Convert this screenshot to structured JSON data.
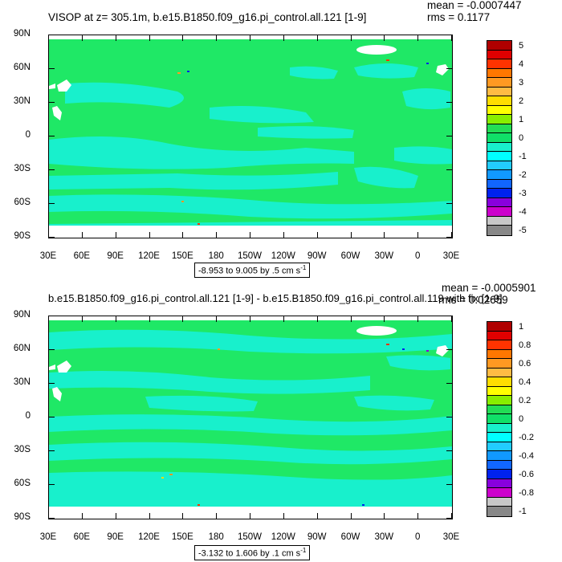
{
  "colors": {
    "ocean_green": "#1fe866",
    "ocean_cyan": "#18f0cc",
    "land": "#ffffff",
    "frame": "#000000"
  },
  "longitude_labels": [
    "30E",
    "60E",
    "90E",
    "120E",
    "150E",
    "180",
    "150W",
    "120W",
    "90W",
    "60W",
    "30W",
    "0",
    "30E"
  ],
  "latitude_labels": [
    "90N",
    "60N",
    "30N",
    "0",
    "30S",
    "60S",
    "90S"
  ],
  "panels": [
    {
      "title": "VISOP at z= 305.1m, b.e15.B1850.f09_g16.pi_control.all.121 [1-9]",
      "mean": "mean = -0.0007447",
      "rms": "rms = 0.1177",
      "range_text": "-8.953 to 9.005 by .5 cm s",
      "range_exponent": "-1",
      "colorbar": {
        "labels": [
          "5",
          "4",
          "3",
          "2",
          "1",
          "0",
          "-1",
          "-2",
          "-3",
          "-4",
          "-5"
        ],
        "colors": [
          "#b00000",
          "#e00000",
          "#ff3300",
          "#ff7700",
          "#ff9922",
          "#ffbb44",
          "#ffdd00",
          "#ffff00",
          "#88ee00",
          "#22dd55",
          "#10e068",
          "#18f0cc",
          "#00ffff",
          "#22ccff",
          "#1199ff",
          "#1166ff",
          "#0022ee",
          "#8800dd",
          "#cc00cc",
          "#c8c8c8",
          "#888888"
        ]
      }
    },
    {
      "title": "b.e15.B1850.f09_g16.pi_control.all.121 [1-9] - b.e15.B1850.f09_g16.pi_control.all.119 with fix [1-9]",
      "mean": "mean = -0.0005901",
      "rms": "rms = 0.02659",
      "range_text": "-3.132 to 1.606 by .1 cm s",
      "range_exponent": "-1",
      "colorbar": {
        "labels": [
          "1",
          "0.8",
          "0.6",
          "0.4",
          "0.2",
          "0",
          "-0.2",
          "-0.4",
          "-0.6",
          "-0.8",
          "-1"
        ],
        "colors": [
          "#b00000",
          "#e00000",
          "#ff3300",
          "#ff7700",
          "#ff9922",
          "#ffbb44",
          "#ffdd00",
          "#ffff00",
          "#88ee00",
          "#22dd55",
          "#10e068",
          "#18f0cc",
          "#00ffff",
          "#22ccff",
          "#1199ff",
          "#1166ff",
          "#0022ee",
          "#8800dd",
          "#cc00cc",
          "#c8c8c8",
          "#888888"
        ]
      }
    }
  ]
}
